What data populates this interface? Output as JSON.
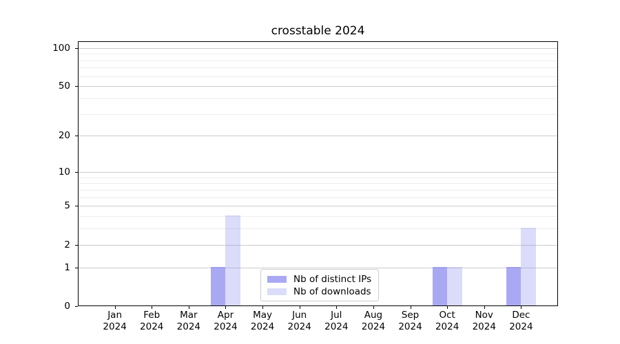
{
  "chart_data": {
    "type": "bar",
    "title": "crosstable 2024",
    "categories": [
      "Jan",
      "Feb",
      "Mar",
      "Apr",
      "May",
      "Jun",
      "Jul",
      "Aug",
      "Sep",
      "Oct",
      "Nov",
      "Dec"
    ],
    "category_year": "2024",
    "series": [
      {
        "key": "distinct-ips",
        "name": "Nb of distinct IPs",
        "color": "rgba(136,136,238,0.72)",
        "values": [
          0,
          0,
          0,
          1,
          0,
          0,
          0,
          0,
          0,
          1,
          0,
          1
        ]
      },
      {
        "key": "downloads",
        "name": "Nb of downloads",
        "color": "rgba(136,136,238,0.30)",
        "values": [
          0,
          0,
          0,
          4,
          0,
          0,
          0,
          0,
          0,
          1,
          0,
          3
        ]
      }
    ],
    "yscale": "log1p",
    "yticks": [
      0,
      1,
      2,
      5,
      10,
      20,
      50,
      100
    ],
    "yticks_minor": [
      3,
      4,
      6,
      7,
      8,
      9,
      30,
      40,
      60,
      70,
      80,
      90
    ],
    "ylim": [
      0,
      113
    ],
    "xlabel": "",
    "ylabel": "",
    "grid": "horizontal-major-and-minor",
    "legend_position": "lower center"
  },
  "colors": {
    "background": "#ffffff",
    "axis": "#000000",
    "grid_major": "#cbcbcb",
    "grid_minor": "#ededed",
    "legend_border": "#cccccc",
    "text": "#000000"
  }
}
